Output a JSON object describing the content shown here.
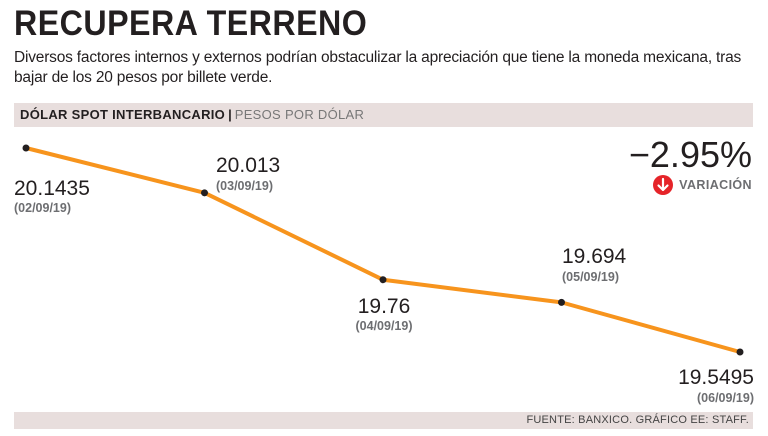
{
  "header": {
    "title": "RECUPERA TERRENO",
    "subtitle": "Diversos factores internos y externos podrían obstaculizar la apreciación que tiene la moneda mexicana, tras bajar de los 20 pesos por billete verde."
  },
  "band": {
    "bold_label": "DÓLAR SPOT INTERBANCARIO",
    "separator": "|",
    "light_label": "PESOS POR DÓLAR"
  },
  "variation": {
    "value": "−2.95%",
    "label": "VARIACIÓN",
    "icon": "down-arrow-icon",
    "icon_color": "#e52429"
  },
  "footer": {
    "source": "FUENTE: BANXICO. GRÁFICO EE: STAFF."
  },
  "colors": {
    "line": "#f7941d",
    "band": "#e8dedd",
    "text": "#231f20"
  },
  "chart_data": {
    "type": "line",
    "title": "DÓLAR SPOT INTERBANCARIO",
    "ylabel": "PESOS POR DÓLAR",
    "x": [
      "02/09/19",
      "03/09/19",
      "04/09/19",
      "05/09/19",
      "06/09/19"
    ],
    "values": [
      20.1435,
      20.013,
      19.76,
      19.694,
      19.5495
    ],
    "value_labels": [
      "20.1435",
      "20.013",
      "19.76",
      "19.694",
      "19.5495"
    ],
    "date_labels": [
      "(02/09/19)",
      "(03/09/19)",
      "(04/09/19)",
      "(05/09/19)",
      "(06/09/19)"
    ]
  }
}
